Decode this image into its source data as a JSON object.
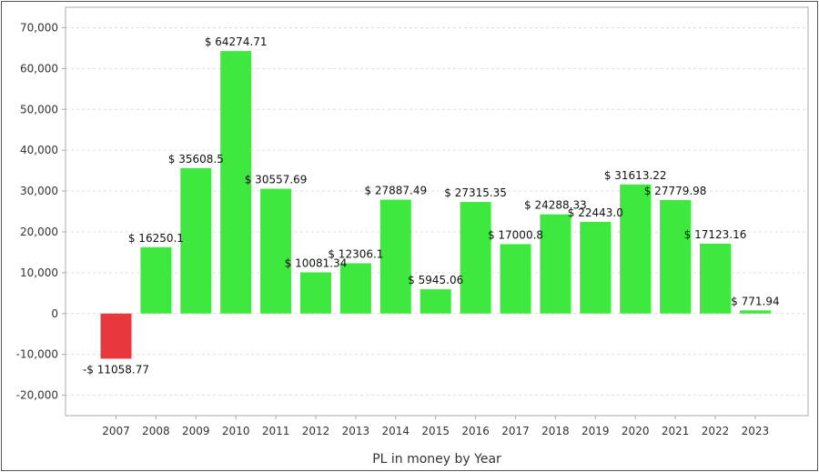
{
  "chart_data": {
    "type": "bar",
    "title": "",
    "xlabel": "PL in money by Year",
    "ylabel": "",
    "ylim": [
      -25000,
      75000
    ],
    "yticks": [
      -20000,
      -10000,
      0,
      10000,
      20000,
      30000,
      40000,
      50000,
      60000,
      70000
    ],
    "ytick_labels": [
      "-20,000",
      "-10,000",
      "0",
      "10,000",
      "20,000",
      "30,000",
      "40,000",
      "50,000",
      "60,000",
      "70,000"
    ],
    "grid": true,
    "categories": [
      "2007",
      "2008",
      "2009",
      "2010",
      "2011",
      "2012",
      "2013",
      "2014",
      "2015",
      "2016",
      "2017",
      "2018",
      "2019",
      "2020",
      "2021",
      "2022",
      "2023"
    ],
    "values": [
      -11058.77,
      16250.1,
      35608.5,
      64274.71,
      30557.69,
      10081.34,
      12306.1,
      27887.49,
      5945.06,
      27315.35,
      17000.8,
      24288.33,
      22443.0,
      31613.22,
      27779.98,
      17123.16,
      771.94
    ],
    "data_labels": [
      "-$ 11058.77",
      "$ 16250.1",
      "$ 35608.5",
      "$ 64274.71",
      "$ 30557.69",
      "$ 10081.34",
      "$ 12306.1",
      "$ 27887.49",
      "$ 5945.06",
      "$ 27315.35",
      "$ 17000.8",
      "$ 24288.33",
      "$ 22443.0",
      "$ 31613.22",
      "$ 27779.98",
      "$ 17123.16",
      "$ 771.94"
    ],
    "colors": {
      "positive": "#3ee83e",
      "negative": "#e8383e",
      "grid": "#dddddd",
      "axis": "#aaaaaa"
    }
  }
}
